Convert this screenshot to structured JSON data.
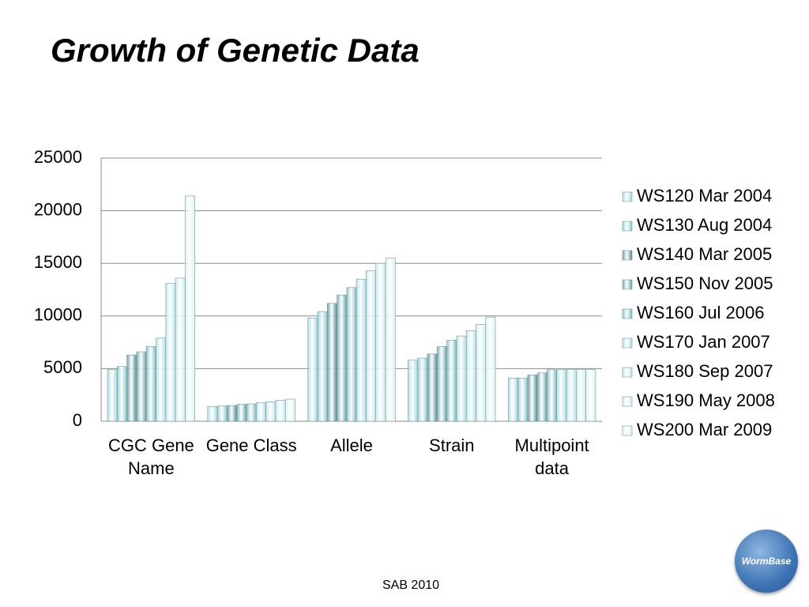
{
  "chart_data": {
    "type": "bar",
    "title": "Growth of Genetic Data",
    "categories": [
      "CGC Gene Name",
      "Gene Class",
      "Allele",
      "Strain",
      "Multipoint data"
    ],
    "series": [
      {
        "name": "WS120 Mar 2004",
        "color": "#9fd7de",
        "values": [
          4900,
          1400,
          9800,
          5800,
          4100
        ]
      },
      {
        "name": "WS130 Aug 2004",
        "color": "#86c5cc",
        "values": [
          5200,
          1450,
          10400,
          6000,
          4100
        ]
      },
      {
        "name": "WS140 Mar 2005",
        "color": "#4e8a8f",
        "values": [
          6300,
          1500,
          11200,
          6400,
          4400
        ]
      },
      {
        "name": "WS150 Nov 2005",
        "color": "#629fa4",
        "values": [
          6600,
          1600,
          12000,
          7100,
          4600
        ]
      },
      {
        "name": "WS160 Jul 2006",
        "color": "#79b8be",
        "values": [
          7100,
          1650,
          12700,
          7700,
          4900
        ]
      },
      {
        "name": "WS170 Jan 2007",
        "color": "#a9dde3",
        "values": [
          7900,
          1750,
          13500,
          8100,
          4900
        ]
      },
      {
        "name": "WS180 Sep 2007",
        "color": "#bbe4e8",
        "values": [
          13100,
          1850,
          14300,
          8600,
          4900
        ]
      },
      {
        "name": "WS190 May 2008",
        "color": "#cbebee",
        "values": [
          13600,
          2000,
          15000,
          9200,
          4900
        ]
      },
      {
        "name": "WS200 Mar 2009",
        "color": "#dcf1f3",
        "values": [
          21400,
          2100,
          15500,
          9900,
          4900
        ]
      }
    ],
    "ylim": [
      0,
      25000
    ],
    "yticks": [
      0,
      5000,
      10000,
      15000,
      20000,
      25000
    ],
    "grid": true,
    "legend": "right"
  },
  "footer": "SAB 2010",
  "logo": "WormBase"
}
